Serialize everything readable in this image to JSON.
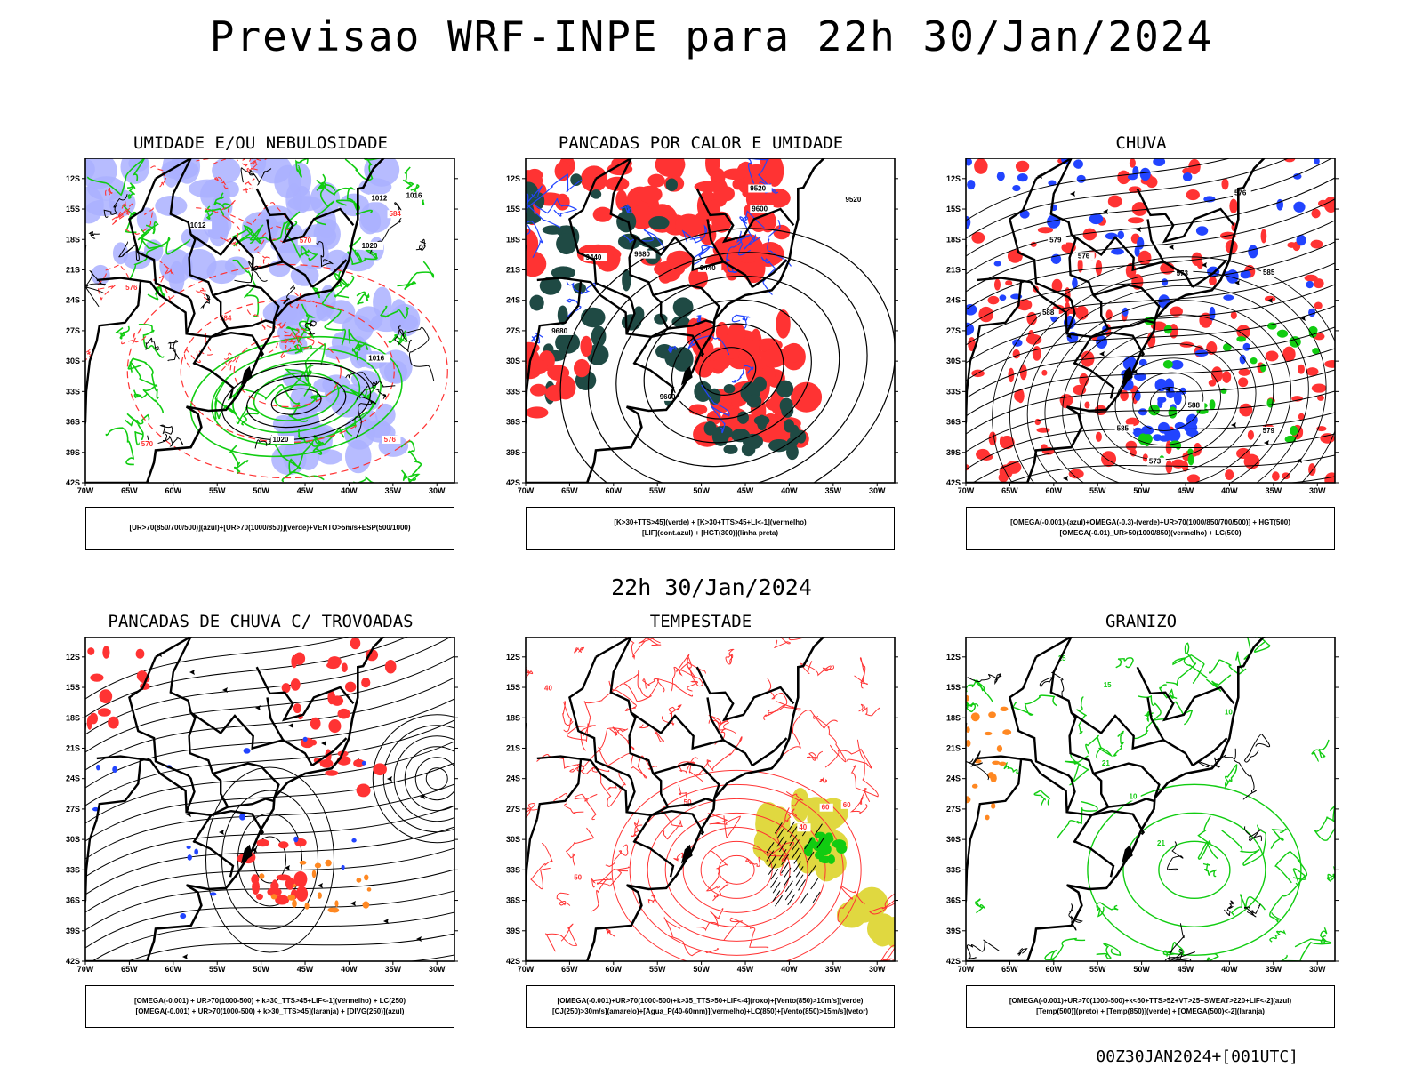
{
  "header": {
    "title": "Previsao WRF-INPE  para 22h 30/Jan/2024",
    "mid_stamp": "22h 30/Jan/2024",
    "run_stamp": "00Z30JAN2024+[001UTC]"
  },
  "axes": {
    "lat_labels": [
      "12S",
      "15S",
      "18S",
      "21S",
      "24S",
      "27S",
      "30S",
      "33S",
      "36S",
      "39S",
      "42S"
    ],
    "lon_labels": [
      "70W",
      "65W",
      "60W",
      "55W",
      "50W",
      "45W",
      "40W",
      "35W",
      "30W"
    ]
  },
  "colors": {
    "red": "#ff3333",
    "green": "#11cc11",
    "blue": "#2244ff",
    "lavender": "#aab0ff",
    "dark_teal": "#1f4a44",
    "yellow": "#e0d840",
    "orange": "#ff8822"
  },
  "panels": [
    {
      "title": "UMIDADE E/OU NEBULOSIDADE",
      "legend": [
        "[UR>70(850/700/500)](azul)+[UR>70(1000/850)](verde)+VENTO>5m/s+ESP(500/1000)"
      ],
      "contour_labels": [
        "1012",
        "1016",
        "1020",
        "576",
        "584",
        "570"
      ]
    },
    {
      "title": "PANCADAS POR CALOR E UMIDADE",
      "legend": [
        "[K>30+TTS>45](verde)  +  [K>30+TTS>45+LI<-1](vermelho)",
        "[LIF](cont.azul)  +  [HGT(300)](linha preta)"
      ],
      "contour_labels": [
        "9680",
        "9600",
        "9520",
        "9440"
      ]
    },
    {
      "title": "CHUVA",
      "legend": [
        "[OMEGA(-0.001)-(azul)+OMEGA(-0.3)-(verde)+UR>70(1000/850/700/500)]  +  HGT(500)",
        "[OMEGA(-0.01)_UR>50(1000/850)(vermelho)  +  LC(500)"
      ],
      "contour_labels": [
        "588",
        "585",
        "579",
        "576",
        "573"
      ]
    },
    {
      "title": "PANCADAS DE CHUVA C/ TROVOADAS",
      "legend": [
        "[OMEGA(-0.001)  +  UR>70(1000-500)  +  k>30_TTS>45+LIF<-1](vermelho)  +  LC(250)",
        "[OMEGA(-0.001)  +  UR>70(1000-500)  +  k>30_TTS>45](laranja)  +  [DIVG(250)](azul)"
      ],
      "contour_labels": []
    },
    {
      "title": "TEMPESTADE",
      "legend": [
        "[OMEGA(-0.001)+UR>70(1000-500)+k>35_TTS>50+LIF<-4](roxo)+[Vento(850)>10m/s](verde)",
        "[CJ(250)>30m/s](amarelo)+[Agua_P(40-60mm)](vermelho)+LC(850)+[Vento(850)>15m/s](vetor)"
      ],
      "contour_labels": [
        "50",
        "40",
        "60"
      ]
    },
    {
      "title": "GRANIZO",
      "legend": [
        "[OMEGA(-0.001)+UR>70(1000-500)+k<60+TTS>52+VT>25+SWEAT>220+LIF<-2](azul)",
        "[Temp(500)](preto)  +  [Temp(850)](verde)  +  [OMEGA(500)<-2](laranja)"
      ],
      "contour_labels": [
        "10",
        "15",
        "21"
      ]
    }
  ]
}
